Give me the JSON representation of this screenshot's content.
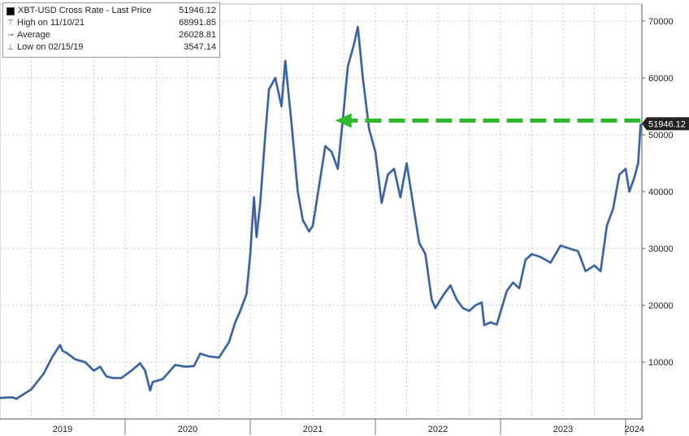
{
  "chart_data": {
    "type": "line",
    "legend": {
      "title": "XBT-USD Cross Rate - Last Price",
      "last_price": "51946.12",
      "entries": [
        {
          "label": "High on 11/10/21",
          "value": "68991.85"
        },
        {
          "label": "Average",
          "value": "26028.81"
        },
        {
          "label": "Low on 02/15/19",
          "value": "3547.14"
        }
      ],
      "placement": "top-left"
    },
    "last_price_tag": "51946.12",
    "ylim": [
      0,
      73000
    ],
    "yticks": [
      10000,
      20000,
      30000,
      40000,
      50000,
      60000,
      70000
    ],
    "ytick_labels": [
      "10000",
      "20000",
      "30000",
      "40000",
      "50000",
      "60000",
      "70000"
    ],
    "xlim": [
      2019.0,
      2024.13
    ],
    "x_labels": [
      {
        "label": "2019",
        "center": 2019.5
      },
      {
        "label": "2020",
        "center": 2020.5
      },
      {
        "label": "2021",
        "center": 2021.5
      },
      {
        "label": "2022",
        "center": 2022.5
      },
      {
        "label": "2023",
        "center": 2023.5
      },
      {
        "label": "2024",
        "center": 2024.07
      }
    ],
    "x_boundaries": [
      2020.0,
      2021.0,
      2022.0,
      2023.0,
      2024.0
    ],
    "grid": true,
    "colors": {
      "line": "#2a5da8",
      "line_dark": "#14284a",
      "arrow": "#2db82d",
      "tag": "#222222"
    },
    "annotation": {
      "type": "dashed-arrow",
      "from_x": 2024.12,
      "to_x": 2021.68,
      "y": 52500
    },
    "series": [
      {
        "x": [
          2019.0,
          2019.1,
          2019.13,
          2019.25,
          2019.35,
          2019.42,
          2019.48,
          2019.5,
          2019.54,
          2019.6,
          2019.68,
          2019.75,
          2019.8,
          2019.85,
          2019.9,
          2019.97,
          2020.05,
          2020.12,
          2020.16,
          2020.2,
          2020.22,
          2020.3,
          2020.4,
          2020.48,
          2020.55,
          2020.6,
          2020.67,
          2020.75,
          2020.83,
          2020.88,
          2020.92,
          2020.97,
          2021.0,
          2021.03,
          2021.05,
          2021.08,
          2021.12,
          2021.15,
          2021.2,
          2021.25,
          2021.28,
          2021.33,
          2021.38,
          2021.42,
          2021.47,
          2021.5,
          2021.55,
          2021.6,
          2021.65,
          2021.7,
          2021.75,
          2021.78,
          2021.83,
          2021.86,
          2021.9,
          2021.95,
          2022.0,
          2022.05,
          2022.1,
          2022.15,
          2022.2,
          2022.25,
          2022.3,
          2022.35,
          2022.4,
          2022.45,
          2022.48,
          2022.52,
          2022.55,
          2022.6,
          2022.65,
          2022.7,
          2022.75,
          2022.8,
          2022.85,
          2022.87,
          2022.92,
          2022.97,
          2023.05,
          2023.1,
          2023.15,
          2023.2,
          2023.25,
          2023.32,
          2023.4,
          2023.48,
          2023.55,
          2023.62,
          2023.68,
          2023.75,
          2023.8,
          2023.85,
          2023.9,
          2023.95,
          2024.0,
          2024.03,
          2024.07,
          2024.1,
          2024.12
        ],
        "values": [
          3700,
          3800,
          3547,
          5200,
          8000,
          11000,
          13000,
          12000,
          11500,
          10500,
          10000,
          8500,
          9200,
          7500,
          7200,
          7200,
          8500,
          9800,
          8500,
          5000,
          6500,
          7000,
          9500,
          9200,
          9300,
          11500,
          11000,
          10800,
          13500,
          17000,
          19000,
          22000,
          29000,
          39000,
          32000,
          38000,
          50000,
          58000,
          60000,
          55000,
          63000,
          52000,
          40000,
          35000,
          33000,
          34000,
          41000,
          48000,
          47000,
          44000,
          55000,
          62000,
          66000,
          68991,
          60000,
          51000,
          47000,
          38000,
          43000,
          44000,
          39000,
          45000,
          38000,
          31000,
          29000,
          21000,
          19500,
          21000,
          22000,
          23500,
          21000,
          19500,
          19000,
          20000,
          20500,
          16500,
          17000,
          16600,
          22500,
          24000,
          23000,
          28000,
          29000,
          28500,
          27500,
          30500,
          30000,
          29500,
          26000,
          27000,
          26000,
          34000,
          37000,
          43000,
          44000,
          40000,
          42500,
          45000,
          51946
        ]
      }
    ]
  }
}
